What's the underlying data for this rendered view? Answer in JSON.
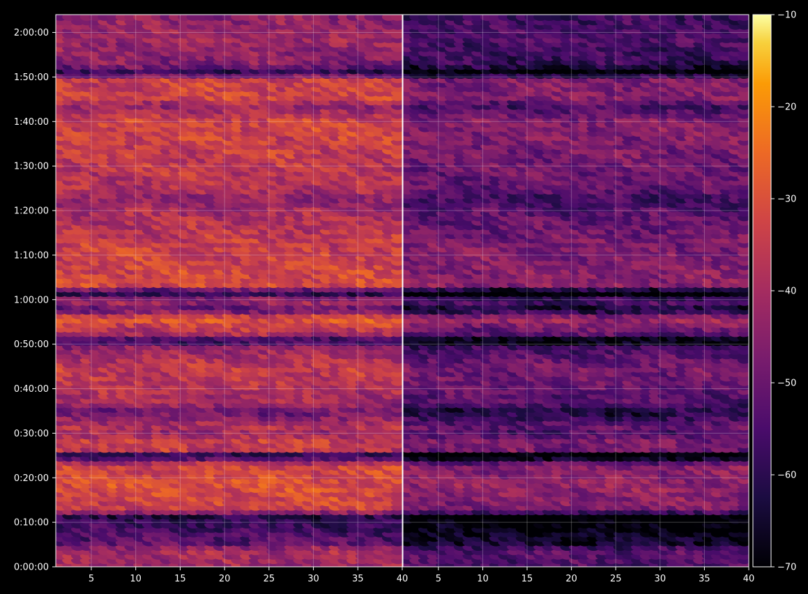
{
  "chart_data": {
    "type": "heatmap",
    "title": "",
    "xlabel": "",
    "ylabel": "",
    "colormap": "inferno",
    "background": "#000000",
    "grid": true,
    "panels": [
      {
        "name": "",
        "xlim": [
          1,
          40
        ],
        "x_ticks": [
          5,
          10,
          15,
          20,
          25,
          30,
          35,
          40
        ],
        "x_tick_labels": [
          "5",
          "10",
          "15",
          "20",
          "25",
          "30",
          "35",
          "40"
        ],
        "brightness_offset": 0
      },
      {
        "name": "",
        "xlim": [
          1,
          40
        ],
        "x_ticks": [
          5,
          10,
          15,
          20,
          25,
          30,
          35,
          40
        ],
        "x_tick_labels": [
          "5",
          "10",
          "15",
          "20",
          "25",
          "30",
          "35",
          "40"
        ],
        "brightness_offset": -13
      }
    ],
    "y_range_seconds": [
      0,
      7440
    ],
    "y_ticks_seconds": [
      0,
      600,
      1200,
      1800,
      2400,
      3000,
      3600,
      4200,
      4800,
      5400,
      6000,
      6600,
      7200
    ],
    "y_tick_labels": [
      "0:00:00",
      "0:10:00",
      "0:20:00",
      "0:30:00",
      "0:40:00",
      "0:50:00",
      "1:00:00",
      "1:10:00",
      "1:20:00",
      "1:30:00",
      "1:40:00",
      "1:50:00",
      "2:00:00"
    ],
    "colorbar": {
      "min": -70,
      "max": -10,
      "ticks": [
        -70,
        -60,
        -50,
        -40,
        -30,
        -20,
        -10
      ],
      "tick_labels": [
        "−70",
        "−60",
        "−50",
        "−40",
        "−30",
        "−20",
        "−10"
      ]
    },
    "time_profile": [
      {
        "t": 0,
        "level": -42
      },
      {
        "t": 240,
        "level": -40
      },
      {
        "t": 330,
        "level": -52
      },
      {
        "t": 600,
        "level": -58
      },
      {
        "t": 700,
        "level": -62
      },
      {
        "t": 780,
        "level": -34
      },
      {
        "t": 1100,
        "level": -30
      },
      {
        "t": 1380,
        "level": -33
      },
      {
        "t": 1520,
        "level": -66
      },
      {
        "t": 1560,
        "level": -36
      },
      {
        "t": 1740,
        "level": -34
      },
      {
        "t": 1800,
        "level": -44
      },
      {
        "t": 1880,
        "level": -38
      },
      {
        "t": 2100,
        "level": -50
      },
      {
        "t": 2220,
        "level": -40
      },
      {
        "t": 2700,
        "level": -35
      },
      {
        "t": 2880,
        "level": -40
      },
      {
        "t": 3000,
        "level": -46
      },
      {
        "t": 3060,
        "level": -66
      },
      {
        "t": 3120,
        "level": -42
      },
      {
        "t": 3360,
        "level": -28
      },
      {
        "t": 3480,
        "level": -52
      },
      {
        "t": 3600,
        "level": -40
      },
      {
        "t": 3720,
        "level": -66
      },
      {
        "t": 3780,
        "level": -32
      },
      {
        "t": 4200,
        "level": -33
      },
      {
        "t": 4500,
        "level": -36
      },
      {
        "t": 4800,
        "level": -40
      },
      {
        "t": 4980,
        "level": -44
      },
      {
        "t": 5100,
        "level": -38
      },
      {
        "t": 5700,
        "level": -34
      },
      {
        "t": 6000,
        "level": -32
      },
      {
        "t": 6240,
        "level": -44
      },
      {
        "t": 6300,
        "level": -33
      },
      {
        "t": 6600,
        "level": -34
      },
      {
        "t": 6660,
        "level": -62
      },
      {
        "t": 6780,
        "level": -46
      },
      {
        "t": 7100,
        "level": -42
      },
      {
        "t": 7440,
        "level": -44
      }
    ]
  }
}
